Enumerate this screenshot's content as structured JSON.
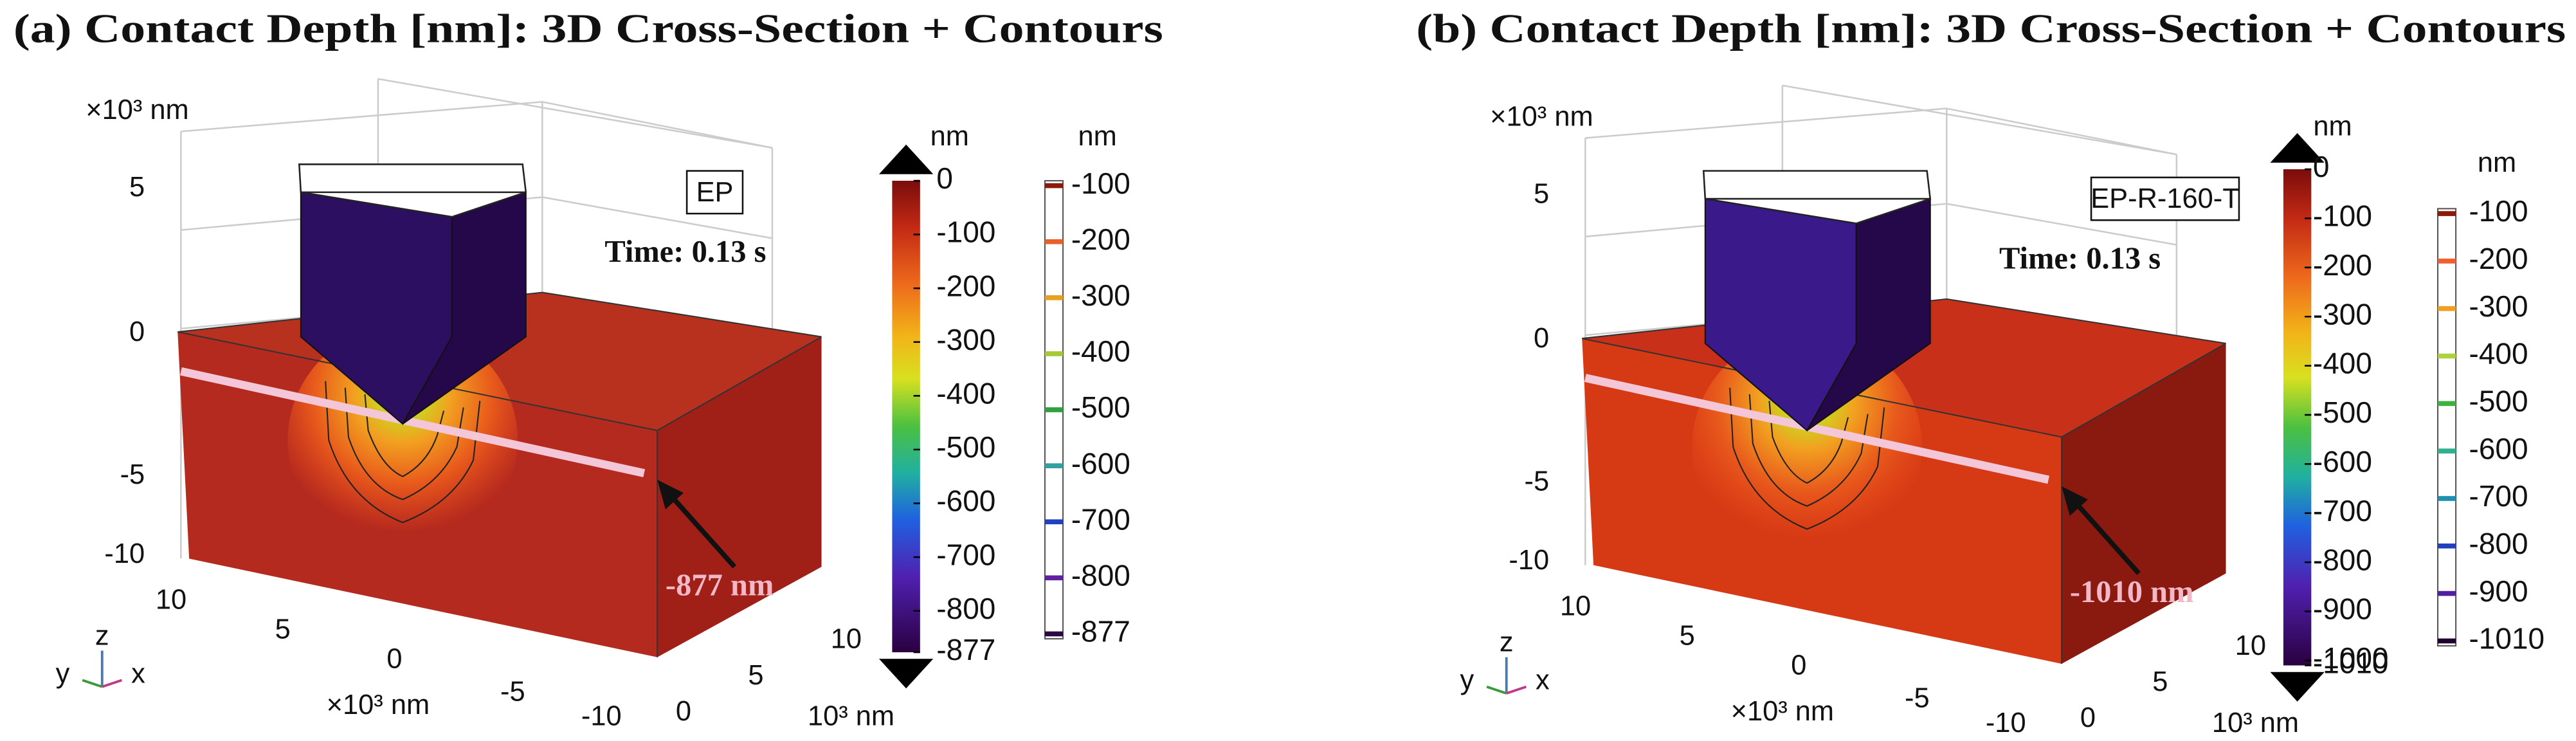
{
  "panels": [
    {
      "title": "(a) Contact Depth [nm]: 3D Cross-Section + Contours",
      "z_unit": "×10³ nm",
      "z_ticks": [
        "5",
        "0",
        "-5",
        "-10"
      ],
      "x_ticks": [
        "10",
        "5",
        "0",
        "-5",
        "-10"
      ],
      "x_unit": "×10³ nm",
      "y_ticks": [
        "0",
        "5",
        "10"
      ],
      "y_unit": "10³ nm",
      "axes": [
        "z",
        "y",
        "x"
      ],
      "model": "EP",
      "time": "Time: 0.13 s",
      "annotation": "-877 nm",
      "colorbar": {
        "unit": "nm",
        "lim": [
          -877,
          0
        ],
        "ticks": [
          0,
          -100,
          -200,
          -300,
          -400,
          -500,
          -600,
          -700,
          -800,
          -877
        ]
      },
      "contours": {
        "unit": "nm",
        "levels": [
          -100,
          -200,
          -300,
          -400,
          -500,
          -600,
          -700,
          -800,
          -877
        ],
        "colors": [
          "#8b1a0a",
          "#e8602a",
          "#e8a020",
          "#a8c83a",
          "#30a040",
          "#30a0a0",
          "#2040c0",
          "#6020a0",
          "#2a0a40"
        ]
      }
    },
    {
      "title": "(b) Contact Depth [nm]: 3D Cross-Section + Contours",
      "z_unit": "×10³ nm",
      "z_ticks": [
        "5",
        "0",
        "-5",
        "-10"
      ],
      "x_ticks": [
        "10",
        "5",
        "0",
        "-5",
        "-10"
      ],
      "x_unit": "×10³ nm",
      "y_ticks": [
        "0",
        "5",
        "10"
      ],
      "y_unit": "10³ nm",
      "axes": [
        "z",
        "y",
        "x"
      ],
      "model": "EP-R-160-T",
      "time": "Time: 0.13 s",
      "annotation": "-1010 nm",
      "colorbar": {
        "unit": "nm",
        "lim": [
          -1010,
          0
        ],
        "ticks": [
          0,
          -100,
          -200,
          -300,
          -400,
          -500,
          -600,
          -700,
          -800,
          -900,
          -1000,
          -1010
        ]
      },
      "contours": {
        "unit": "nm",
        "levels": [
          -100,
          -200,
          -300,
          -400,
          -500,
          -600,
          -700,
          -800,
          -900,
          -1010
        ],
        "colors": [
          "#8b1a0a",
          "#f06030",
          "#f0a020",
          "#b0d040",
          "#40b040",
          "#30b090",
          "#2090b0",
          "#2040c0",
          "#5020a0",
          "#200030"
        ]
      }
    }
  ]
}
